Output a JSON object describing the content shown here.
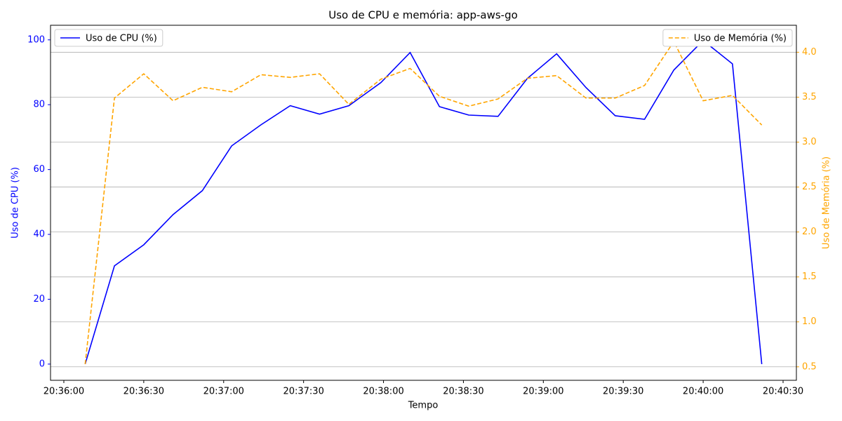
{
  "chart_data": {
    "type": "line",
    "title": "Uso de CPU e memória: app-aws-go",
    "x_label": "Tempo",
    "y_label": "Uso de CPU (%)",
    "y2_label": "Uso de Memória (%)",
    "x": [
      "20:36:08",
      "20:36:19",
      "20:36:30",
      "20:36:41",
      "20:36:52",
      "20:37:03",
      "20:37:14",
      "20:37:25",
      "20:37:36",
      "20:37:47",
      "20:37:59",
      "20:38:10",
      "20:38:21",
      "20:38:32",
      "20:38:43",
      "20:38:54",
      "20:39:05",
      "20:39:16",
      "20:39:27",
      "20:39:38",
      "20:39:49",
      "20:40:00",
      "20:40:11",
      "20:40:22"
    ],
    "xlim": [
      "20:35:55",
      "20:40:35"
    ],
    "xticks": [
      "20:36:00",
      "20:36:30",
      "20:37:00",
      "20:37:30",
      "20:38:00",
      "20:38:30",
      "20:39:00",
      "20:39:30",
      "20:40:00",
      "20:40:30"
    ],
    "ylim": [
      -5,
      104.5
    ],
    "yticks": [
      0,
      20,
      40,
      60,
      80,
      100
    ],
    "y_color": "#0000ff",
    "y2lim": [
      0.35,
      4.3
    ],
    "y2ticks": [
      0.5,
      {
        "value": 1,
        "label": "1.0"
      },
      1.5,
      {
        "value": 2,
        "label": "2.0"
      },
      2.5,
      {
        "value": 3,
        "label": "3.0"
      },
      3.5,
      {
        "value": 4,
        "label": "4.0"
      }
    ],
    "y2_color": "#ffa500",
    "grid": "y2",
    "series": [
      {
        "name": "Uso de CPU (%)",
        "color": "#0000ff",
        "linestyle": "solid",
        "legend": "upper left",
        "values": [
          0,
          30.3,
          36.8,
          46.1,
          53.5,
          67.3,
          73.8,
          79.7,
          77.1,
          79.7,
          86.8,
          96.1,
          79.4,
          76.8,
          76.4,
          88.1,
          95.7,
          85.3,
          76.6,
          75.5,
          90.7,
          99.8,
          92.6,
          0
        ]
      },
      {
        "name": "Uso de Memória (%)",
        "color": "#ffa500",
        "linestyle": "dashed",
        "legend": "upper right",
        "axis": "y2",
        "values": [
          0.53,
          3.49,
          3.76,
          3.46,
          3.61,
          3.56,
          3.75,
          3.72,
          3.76,
          3.42,
          3.7,
          3.82,
          3.51,
          3.4,
          3.48,
          3.71,
          3.74,
          3.49,
          3.49,
          3.63,
          4.12,
          3.46,
          3.52,
          3.19
        ]
      }
    ]
  }
}
